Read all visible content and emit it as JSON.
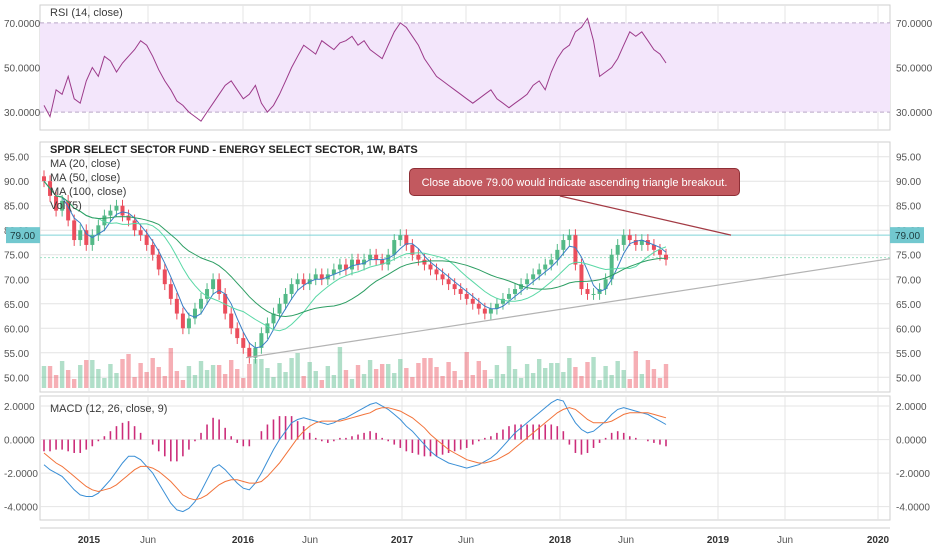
{
  "chart_data": [
    {
      "type": "line",
      "title": "RSI (14, close)",
      "ylim": [
        22,
        78
      ],
      "yticks": [
        "70.0000",
        "50.0000",
        "30.0000"
      ],
      "bands": {
        "upper": 70,
        "lower": 30
      },
      "series": [
        {
          "name": "RSI",
          "values": [
            33,
            28,
            40,
            38,
            46,
            36,
            34,
            44,
            50,
            46,
            55,
            53,
            48,
            52,
            55,
            58,
            62,
            60,
            55,
            49,
            44,
            40,
            35,
            33,
            30,
            28,
            26,
            30,
            34,
            38,
            42,
            44,
            40,
            36,
            38,
            42,
            34,
            30,
            33,
            38,
            44,
            50,
            55,
            60,
            58,
            56,
            62,
            60,
            58,
            61,
            62,
            64,
            60,
            62,
            58,
            56,
            54,
            60,
            66,
            70,
            68,
            64,
            60,
            54,
            50,
            46,
            44,
            42,
            40,
            38,
            36,
            34,
            36,
            38,
            40,
            36,
            34,
            32,
            34,
            36,
            38,
            42,
            44,
            40,
            48,
            54,
            58,
            60,
            66,
            68,
            72,
            62,
            46,
            48,
            50,
            54,
            60,
            66,
            64,
            66,
            62,
            58,
            56,
            52
          ]
        }
      ]
    },
    {
      "type": "candlestick",
      "title": "SPDR SELECT SECTOR FUND - ENERGY SELECT SECTOR, 1W, BATS",
      "ylim": [
        47,
        98
      ],
      "yticks": [
        "95.00",
        "90.00",
        "85.00",
        "80.00",
        "75.00",
        "70.00",
        "65.00",
        "60.00",
        "55.00",
        "50.00"
      ],
      "highlight_level": "79.00",
      "current_level": "74.40",
      "legend": [
        "MA (20, close)",
        "MA (50, close)",
        "MA (100, close)",
        "Vol (5)"
      ],
      "close": [
        90,
        87,
        84,
        86,
        82,
        78,
        80,
        77,
        79,
        81,
        83,
        84,
        85,
        83,
        82,
        80,
        79,
        77,
        75,
        72,
        69,
        66,
        63,
        60,
        62,
        64,
        66,
        68,
        70,
        67,
        63,
        60,
        58,
        56,
        54,
        56,
        59,
        61,
        63,
        65,
        67,
        69,
        70,
        69,
        70,
        71,
        70,
        71,
        72,
        73,
        72,
        74,
        73,
        74,
        75,
        74,
        73,
        75,
        78,
        79,
        77,
        75,
        74,
        73,
        72,
        71,
        70,
        69,
        68,
        67,
        66,
        65,
        64,
        63,
        64,
        65,
        66,
        67,
        68,
        69,
        70,
        71,
        72,
        73,
        74,
        76,
        78,
        79,
        73,
        68,
        67,
        67,
        68,
        70,
        75,
        77,
        79,
        78,
        77,
        78,
        77,
        76,
        75,
        74
      ]
    },
    {
      "type": "line",
      "title": "MACD (12, 26, close, 9)",
      "ylim": [
        -4.8,
        2.6
      ],
      "yticks": [
        "2.0000",
        "0.0000",
        "-2.0000",
        "-4.0000"
      ],
      "series": [
        {
          "name": "MACD",
          "values": [
            -1.5,
            -1.8,
            -2.0,
            -2.2,
            -2.6,
            -3.0,
            -3.3,
            -3.4,
            -3.4,
            -3.2,
            -2.8,
            -2.4,
            -1.9,
            -1.4,
            -1.0,
            -1.0,
            -1.2,
            -1.6,
            -2.0,
            -2.6,
            -3.2,
            -3.8,
            -4.2,
            -4.3,
            -4.1,
            -3.7,
            -3.1,
            -2.4,
            -1.7,
            -1.5,
            -1.8,
            -2.2,
            -2.6,
            -2.9,
            -3.0,
            -2.6,
            -2.0,
            -1.3,
            -0.6,
            0.0,
            0.5,
            1.0,
            1.2,
            1.3,
            1.2,
            1.1,
            1.0,
            0.9,
            1.0,
            1.2,
            1.3,
            1.5,
            1.7,
            1.9,
            2.1,
            2.2,
            2.0,
            1.8,
            1.5,
            1.2,
            0.8,
            0.5,
            0.1,
            -0.3,
            -0.7,
            -1.0,
            -1.2,
            -1.4,
            -1.5,
            -1.6,
            -1.7,
            -1.6,
            -1.5,
            -1.3,
            -1.1,
            -0.8,
            -0.4,
            0.0,
            0.4,
            0.7,
            1.0,
            1.3,
            1.6,
            1.9,
            2.2,
            2.4,
            2.3,
            1.6,
            1.0,
            0.6,
            0.4,
            0.5,
            0.8,
            1.1,
            1.5,
            1.8,
            1.9,
            1.8,
            1.7,
            1.6,
            1.5,
            1.3,
            1.1,
            0.9
          ]
        },
        {
          "name": "Signal",
          "values": [
            -0.8,
            -1.1,
            -1.4,
            -1.6,
            -1.9,
            -2.2,
            -2.5,
            -2.8,
            -3.0,
            -3.1,
            -3.0,
            -2.9,
            -2.7,
            -2.4,
            -2.1,
            -1.8,
            -1.6,
            -1.6,
            -1.7,
            -1.9,
            -2.2,
            -2.5,
            -2.9,
            -3.3,
            -3.5,
            -3.6,
            -3.5,
            -3.3,
            -3.0,
            -2.7,
            -2.5,
            -2.4,
            -2.4,
            -2.5,
            -2.6,
            -2.6,
            -2.5,
            -2.2,
            -1.8,
            -1.4,
            -0.9,
            -0.4,
            0.1,
            0.5,
            0.8,
            1.0,
            1.1,
            1.1,
            1.1,
            1.1,
            1.2,
            1.3,
            1.4,
            1.5,
            1.6,
            1.8,
            1.9,
            1.9,
            1.8,
            1.7,
            1.5,
            1.3,
            1.0,
            0.7,
            0.3,
            0.0,
            -0.3,
            -0.6,
            -0.8,
            -1.0,
            -1.2,
            -1.3,
            -1.4,
            -1.4,
            -1.3,
            -1.2,
            -1.0,
            -0.8,
            -0.5,
            -0.2,
            0.1,
            0.4,
            0.7,
            1.0,
            1.3,
            1.6,
            1.8,
            1.9,
            1.8,
            1.5,
            1.2,
            1.0,
            1.0,
            1.0,
            1.1,
            1.3,
            1.5,
            1.6,
            1.6,
            1.6,
            1.6,
            1.5,
            1.4,
            1.3
          ]
        }
      ]
    }
  ],
  "xaxis": {
    "labels": [
      "2015",
      "Jun",
      "2016",
      "Jun",
      "2017",
      "Jun",
      "2018",
      "Jun",
      "2019",
      "Jun",
      "2020"
    ],
    "bold": [
      "2015",
      "2016",
      "2017",
      "2018",
      "2019",
      "2020"
    ]
  },
  "annotation": {
    "text": "Close above 79.00 would indicate ascending triangle breakout."
  },
  "colors": {
    "up": "#53b987",
    "down": "#eb4d5c",
    "rsi_line": "#9c3a8a",
    "rsi_band": "#f3e6fb",
    "ma20": "#3a7ec6",
    "ma50": "#5ad8a6",
    "ma100": "#2d9e63",
    "macd": "#3a8fd6",
    "signal": "#f2733a",
    "hist": "#cc2d7a",
    "grid": "#e4e4e4",
    "axis_text": "#555555",
    "trendline": "#b3b3b3"
  }
}
